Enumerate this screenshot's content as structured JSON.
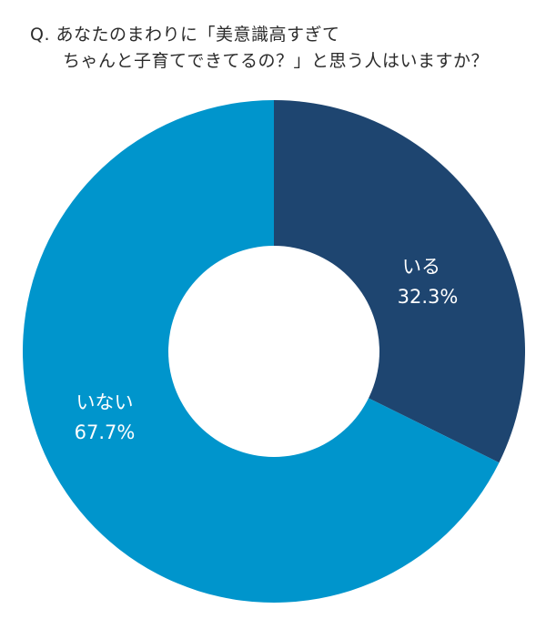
{
  "title": {
    "line1": "Q. あなたのまわりに「美意識高すぎて",
    "line2": "ちゃんと子育てできてるの？」と思う人はいますか？"
  },
  "chart_data": {
    "type": "pie",
    "donut": true,
    "slices": [
      {
        "label": "いる",
        "value_label": "32.3%",
        "value": 32.3,
        "color": "#1e4570"
      },
      {
        "label": "いない",
        "value_label": "67.7%",
        "value": 67.7,
        "color": "#0095cc"
      }
    ]
  }
}
